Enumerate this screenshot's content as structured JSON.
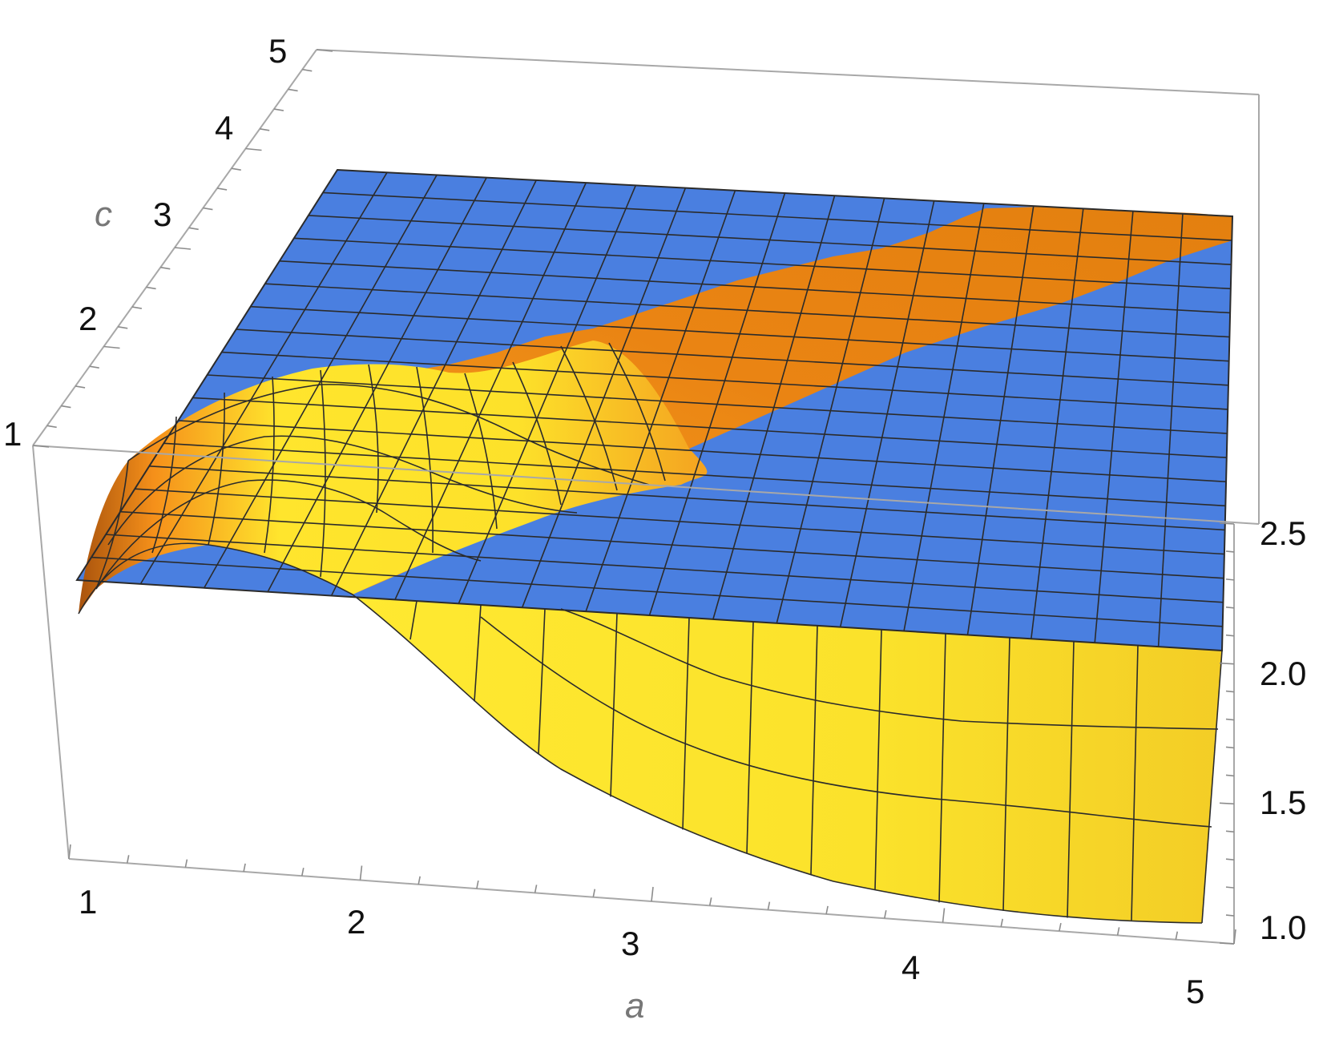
{
  "chart_data": {
    "type": "surface3d",
    "axes": {
      "a": {
        "label": "a",
        "range": [
          1,
          5
        ],
        "ticks": [
          "1",
          "2",
          "3",
          "4",
          "5"
        ]
      },
      "c": {
        "label": "c",
        "range": [
          1,
          5
        ],
        "ticks": [
          "1",
          "2",
          "3",
          "4",
          "5"
        ]
      },
      "z": {
        "label": "",
        "range": [
          1.0,
          2.5
        ],
        "ticks": [
          "1.0",
          "1.5",
          "2.0",
          "2.5"
        ]
      }
    },
    "series": [
      {
        "surface": "flat-plane",
        "z_constant": 2.25,
        "color": "#4a7fe0"
      },
      {
        "surface": "curved",
        "color_low": "#f6e12c",
        "color_mid": "#f7b52a",
        "color_high": "#e7840e",
        "profile_at_c_1": [
          {
            "a": 1.0,
            "z": 2.08
          },
          {
            "a": 1.5,
            "z": 2.28
          },
          {
            "a": 2.0,
            "z": 2.25
          },
          {
            "a": 2.5,
            "z": 1.85
          },
          {
            "a": 3.0,
            "z": 1.55
          },
          {
            "a": 3.5,
            "z": 1.35
          },
          {
            "a": 4.0,
            "z": 1.2
          },
          {
            "a": 4.5,
            "z": 1.1
          },
          {
            "a": 5.0,
            "z": 1.05
          }
        ]
      }
    ],
    "grid": false,
    "box": true
  },
  "labels": {
    "a_ticks": [
      "1",
      "2",
      "3",
      "4",
      "5"
    ],
    "c_ticks": [
      "1",
      "2",
      "3",
      "4",
      "5"
    ],
    "z_ticks": [
      "1.0",
      "1.5",
      "2.0",
      "2.5"
    ],
    "a_axis": "a",
    "c_axis": "c"
  },
  "colors": {
    "plane": "#4a7fe0",
    "surface_yellow": "#f6e12c",
    "surface_orange": "#f08c16",
    "mesh": "#2b2b2b",
    "box": "#a8a8a8"
  }
}
